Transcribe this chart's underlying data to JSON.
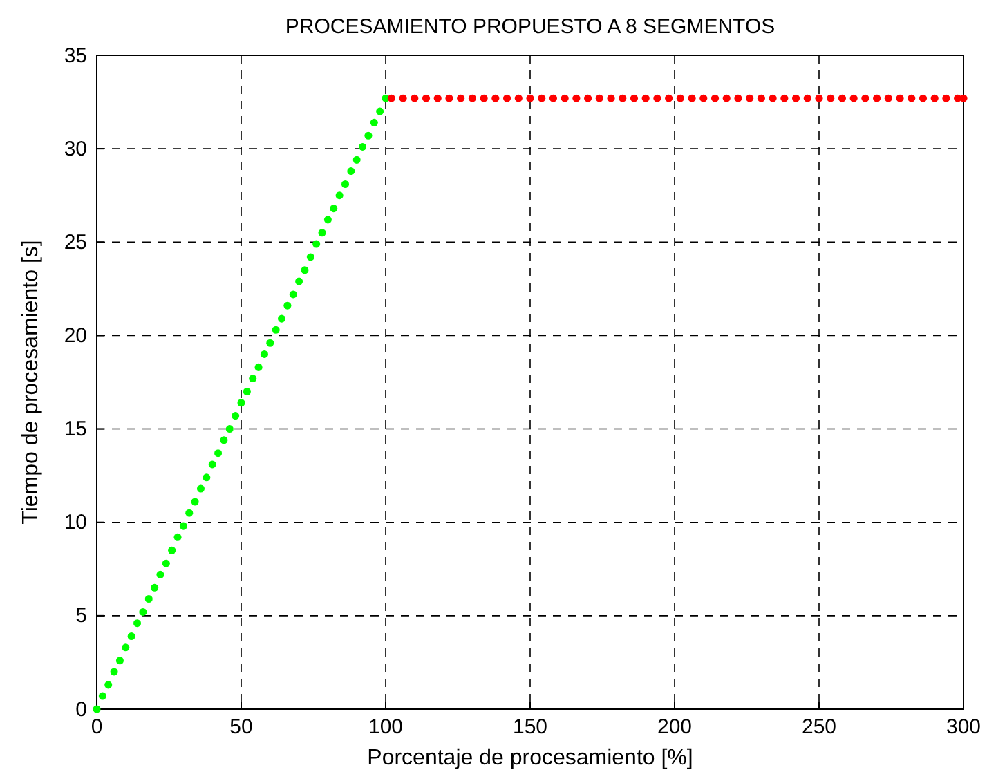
{
  "chart_data": {
    "type": "scatter",
    "title": "PROCESAMIENTO PROPUESTO A 8 SEGMENTOS",
    "xlabel": "Porcentaje de procesamiento [%]",
    "ylabel": "Tiempo de procesamiento [s]",
    "xlim": [
      0,
      300
    ],
    "xticks": [
      0,
      50,
      100,
      150,
      200,
      250,
      300
    ],
    "ylim": [
      0,
      35
    ],
    "yticks": [
      0,
      5,
      10,
      15,
      20,
      25,
      30,
      35
    ],
    "grid": true,
    "marker": "circle",
    "series": [
      {
        "color": "#00ff00",
        "x": [
          0,
          2,
          4,
          6,
          8,
          10,
          12,
          14,
          16,
          18,
          20,
          22,
          24,
          26,
          28,
          30,
          32,
          34,
          36,
          38,
          40,
          42,
          44,
          46,
          48,
          50,
          52,
          54,
          56,
          58,
          60,
          62,
          64,
          66,
          68,
          70,
          72,
          74,
          76,
          78,
          80,
          82,
          84,
          86,
          88,
          90,
          92,
          94,
          96,
          98,
          100
        ],
        "values": [
          0,
          0.7,
          1.3,
          2.0,
          2.6,
          3.3,
          3.9,
          4.6,
          5.2,
          5.9,
          6.5,
          7.2,
          7.8,
          8.5,
          9.2,
          9.8,
          10.5,
          11.1,
          11.8,
          12.4,
          13.1,
          13.7,
          14.4,
          15.0,
          15.7,
          16.4,
          17.0,
          17.7,
          18.3,
          19.0,
          19.6,
          20.3,
          20.9,
          21.6,
          22.2,
          22.9,
          23.5,
          24.2,
          24.9,
          25.5,
          26.2,
          26.8,
          27.5,
          28.1,
          28.8,
          29.4,
          30.1,
          30.7,
          31.4,
          32.0,
          32.7
        ]
      },
      {
        "color": "#ff0000",
        "x": [
          102,
          106,
          110,
          114,
          118,
          122,
          126,
          130,
          134,
          138,
          142,
          146,
          150,
          154,
          158,
          162,
          166,
          170,
          174,
          178,
          182,
          186,
          190,
          194,
          198,
          202,
          206,
          210,
          214,
          218,
          222,
          226,
          230,
          234,
          238,
          242,
          246,
          250,
          254,
          258,
          262,
          266,
          270,
          274,
          278,
          282,
          286,
          290,
          294,
          298,
          300
        ],
        "values": [
          32.7,
          32.7,
          32.7,
          32.7,
          32.7,
          32.7,
          32.7,
          32.7,
          32.7,
          32.7,
          32.7,
          32.7,
          32.7,
          32.7,
          32.7,
          32.7,
          32.7,
          32.7,
          32.7,
          32.7,
          32.7,
          32.7,
          32.7,
          32.7,
          32.7,
          32.7,
          32.7,
          32.7,
          32.7,
          32.7,
          32.7,
          32.7,
          32.7,
          32.7,
          32.7,
          32.7,
          32.7,
          32.7,
          32.7,
          32.7,
          32.7,
          32.7,
          32.7,
          32.7,
          32.7,
          32.7,
          32.7,
          32.7,
          32.7,
          32.7,
          32.7
        ]
      }
    ]
  }
}
